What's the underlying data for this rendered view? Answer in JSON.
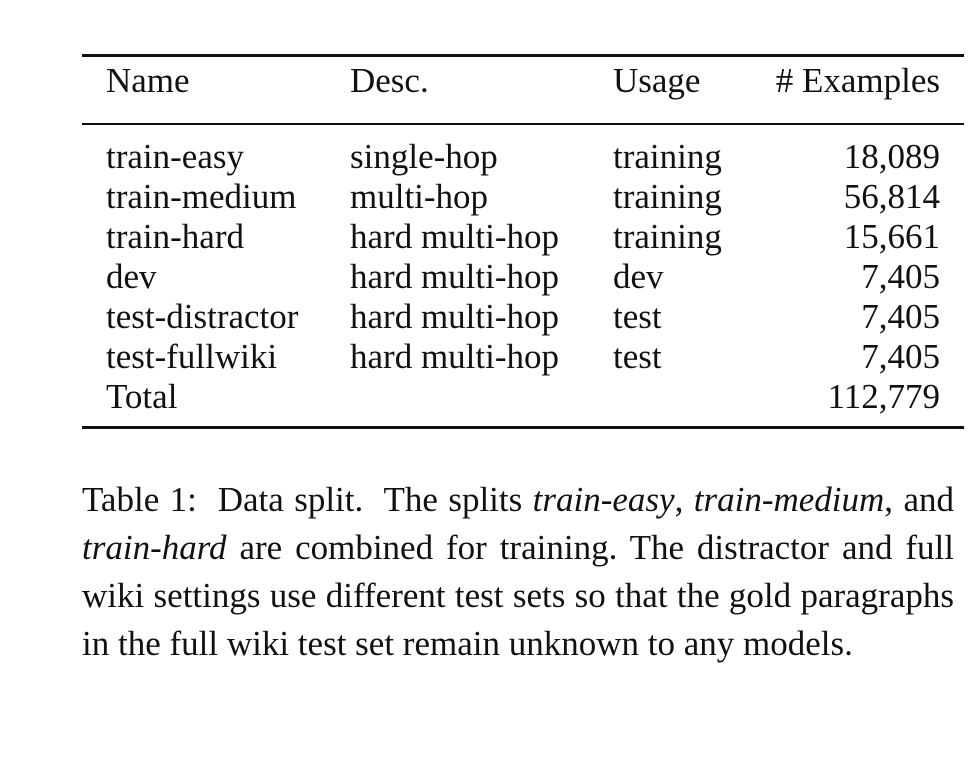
{
  "table": {
    "headers": [
      "Name",
      "Desc.",
      "Usage",
      "# Examples"
    ],
    "rows": [
      [
        "train-easy",
        "single-hop",
        "training",
        "18,089"
      ],
      [
        "train-medium",
        "multi-hop",
        "training",
        "56,814"
      ],
      [
        "train-hard",
        "hard multi-hop",
        "training",
        "15,661"
      ],
      [
        "dev",
        "hard multi-hop",
        "dev",
        "7,405"
      ],
      [
        "test-distractor",
        "hard multi-hop",
        "test",
        "7,405"
      ],
      [
        "test-fullwiki",
        "hard multi-hop",
        "test",
        "7,405"
      ],
      [
        "Total",
        "",
        "",
        "112,779"
      ]
    ]
  },
  "caption": {
    "label": "Table 1:",
    "lead": "Data split.",
    "t1": "The splits",
    "s1": "train-easy",
    "t2": ",",
    "s2": "train-medium",
    "t3": ", and",
    "s3": "train-hard",
    "t4": "are combined for training. The distractor and full wiki settings use different test sets so that the gold paragraphs in the full wiki test set remain unknown to any models."
  }
}
